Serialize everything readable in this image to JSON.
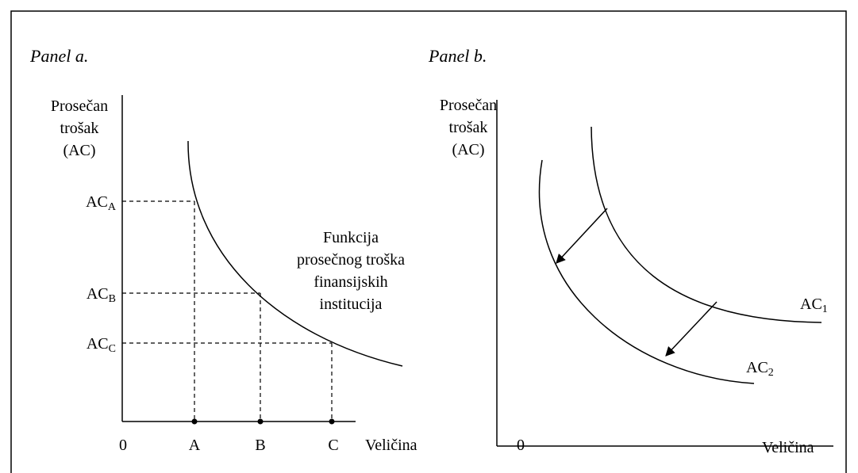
{
  "panel_a": {
    "title": "Panel a.",
    "y_label": [
      "Prosečan",
      "trošak",
      "(AC)"
    ],
    "y_levels": [
      {
        "main": "AC",
        "sub": "A"
      },
      {
        "main": "AC",
        "sub": "B"
      },
      {
        "main": "AC",
        "sub": "C"
      }
    ],
    "origin": "0",
    "x_points": [
      "A",
      "B",
      "C"
    ],
    "x_label": "Veličina",
    "curve_label": [
      "Funkcija",
      "prosečnog troška",
      "finansijskih",
      "institucija"
    ]
  },
  "panel_b": {
    "title": "Panel b.",
    "y_label": [
      "Prosečan",
      "trošak",
      "(AC)"
    ],
    "origin": "0",
    "x_label": "Veličina",
    "curves": [
      {
        "main": "AC",
        "sub": "1"
      },
      {
        "main": "AC",
        "sub": "2"
      }
    ]
  }
}
